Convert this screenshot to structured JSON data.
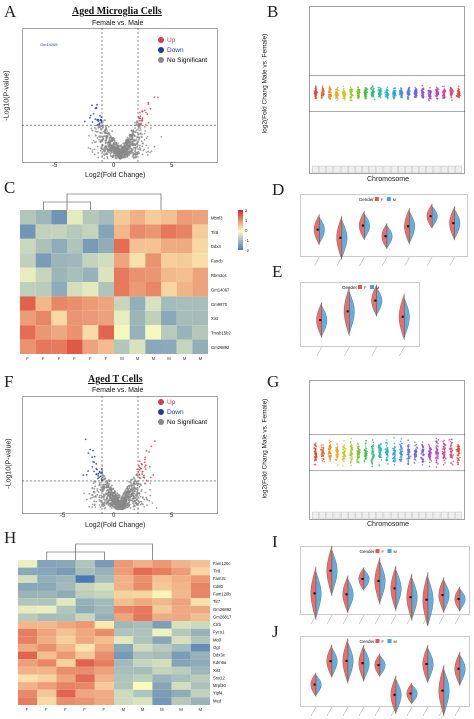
{
  "panels": {
    "A": {
      "letter": "A",
      "title": "Aged Microglia Cells",
      "subtitle": "Female vs. Male",
      "ylabel": "-Log10(P-value)",
      "xlabel": "Log2(Fold Change)",
      "legend": [
        {
          "label": "Up",
          "color": "#d23a4e"
        },
        {
          "label": "Down",
          "color": "#1f3a9a"
        },
        {
          "label": "No Significant",
          "color": "#888888"
        }
      ],
      "xticks": [
        "-5",
        "0",
        "5"
      ],
      "yticks": [
        "0",
        "20",
        "40",
        "60"
      ],
      "top_gene": "Gm14265"
    },
    "B": {
      "letter": "B",
      "ylabel": "log2(Fold Chang Male vs. Female)",
      "xlabel": "Chromosome",
      "yticks": [
        "5",
        "0",
        "-5"
      ]
    },
    "C": {
      "letter": "C",
      "genes": [
        "Mbnl3",
        "Tlr8",
        "Ddx4",
        "Fancb",
        "Rbm3os",
        "Gm14067",
        "Gm9870",
        "Xist",
        "Tmsb15b2",
        "Gm26892"
      ],
      "cols": [
        "F",
        "F",
        "F",
        "F",
        "F",
        "F",
        "M",
        "M",
        "M",
        "M",
        "M",
        "M"
      ],
      "scale": [
        "2",
        "1",
        "0",
        "-1",
        "-2"
      ]
    },
    "D": {
      "letter": "D",
      "legend_title": "Gender",
      "legend": [
        "F",
        "M"
      ]
    },
    "E": {
      "letter": "E",
      "legend_title": "Gender",
      "legend": [
        "F",
        "M"
      ]
    },
    "F": {
      "letter": "F",
      "title": "Aged T Cells",
      "subtitle": "Female vs. Male",
      "ylabel": "-Log10(P-value)",
      "xlabel": "Log2(Fold Change)",
      "legend": [
        {
          "label": "Up",
          "color": "#d23a4e"
        },
        {
          "label": "Down",
          "color": "#1f3a9a"
        },
        {
          "label": "No Significant",
          "color": "#888888"
        }
      ],
      "xticks": [
        "-5",
        "0",
        "5"
      ],
      "yticks": [
        "0",
        "50",
        "100",
        "150"
      ]
    },
    "G": {
      "letter": "G",
      "ylabel": "log2(Fold Chang Male vs. Female)",
      "xlabel": "Chromosome",
      "yticks": [
        "8",
        "7",
        "6",
        "5",
        "4",
        "3",
        "2",
        "1",
        "0",
        "-1",
        "-2",
        "-3",
        "-4",
        "-5",
        "-6",
        "-7",
        "-8",
        "-9",
        "-10"
      ]
    },
    "H": {
      "letter": "H",
      "genes": [
        "Fam120c",
        "Tlr8",
        "Fam3c",
        "Cd80",
        "Fam120b",
        "Tlr7",
        "Gm26892",
        "Gm26817",
        "Ctrb",
        "Fyco1",
        "Moll",
        "Ogt",
        "Ddx3x",
        "Kdm6a",
        "Xist",
        "Snx12",
        "Mrpl30",
        "Yipf4",
        "Med"
      ],
      "cols": [
        "F",
        "F",
        "F",
        "F",
        "F",
        "M",
        "M",
        "M",
        "M",
        "M"
      ]
    },
    "I": {
      "letter": "I",
      "legend_title": "Gender",
      "legend": [
        "F",
        "M"
      ]
    },
    "J": {
      "letter": "J",
      "legend_title": "Gender",
      "legend": [
        "F",
        "M"
      ]
    }
  },
  "colors": {
    "up": "#d23a4e",
    "down": "#1f3a9a",
    "ns": "#888888",
    "heat_high": "#d73027",
    "heat_low": "#4575b4",
    "violin_f": "#e8554e",
    "violin_m": "#4aa0d8"
  }
}
